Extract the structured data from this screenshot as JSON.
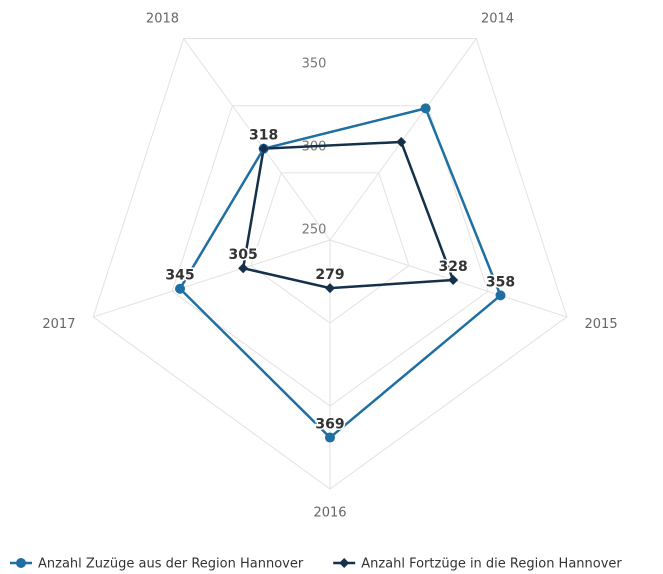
{
  "chart_data": {
    "type": "radar",
    "categories": [
      "2014",
      "2015",
      "2016",
      "2017",
      "2018"
    ],
    "ylim": [
      250,
      400
    ],
    "yticks": [
      250,
      300,
      350
    ],
    "grid": true,
    "legend": "bottom",
    "series": [
      {
        "name": "Anzahl Zuzüge aus der Region Hannover",
        "color": "#1f6fa3",
        "marker": "circle",
        "values": [
          348,
          358,
          369,
          345,
          318
        ],
        "value_labels": [
          null,
          "358",
          "369",
          "345",
          "318"
        ]
      },
      {
        "name": "Anzahl Fortzüge in die Region Hannover",
        "color": "#14304a",
        "marker": "diamond",
        "values": [
          323,
          328,
          279,
          305,
          318
        ],
        "value_labels": [
          null,
          "328",
          "279",
          "305",
          null
        ]
      }
    ]
  }
}
